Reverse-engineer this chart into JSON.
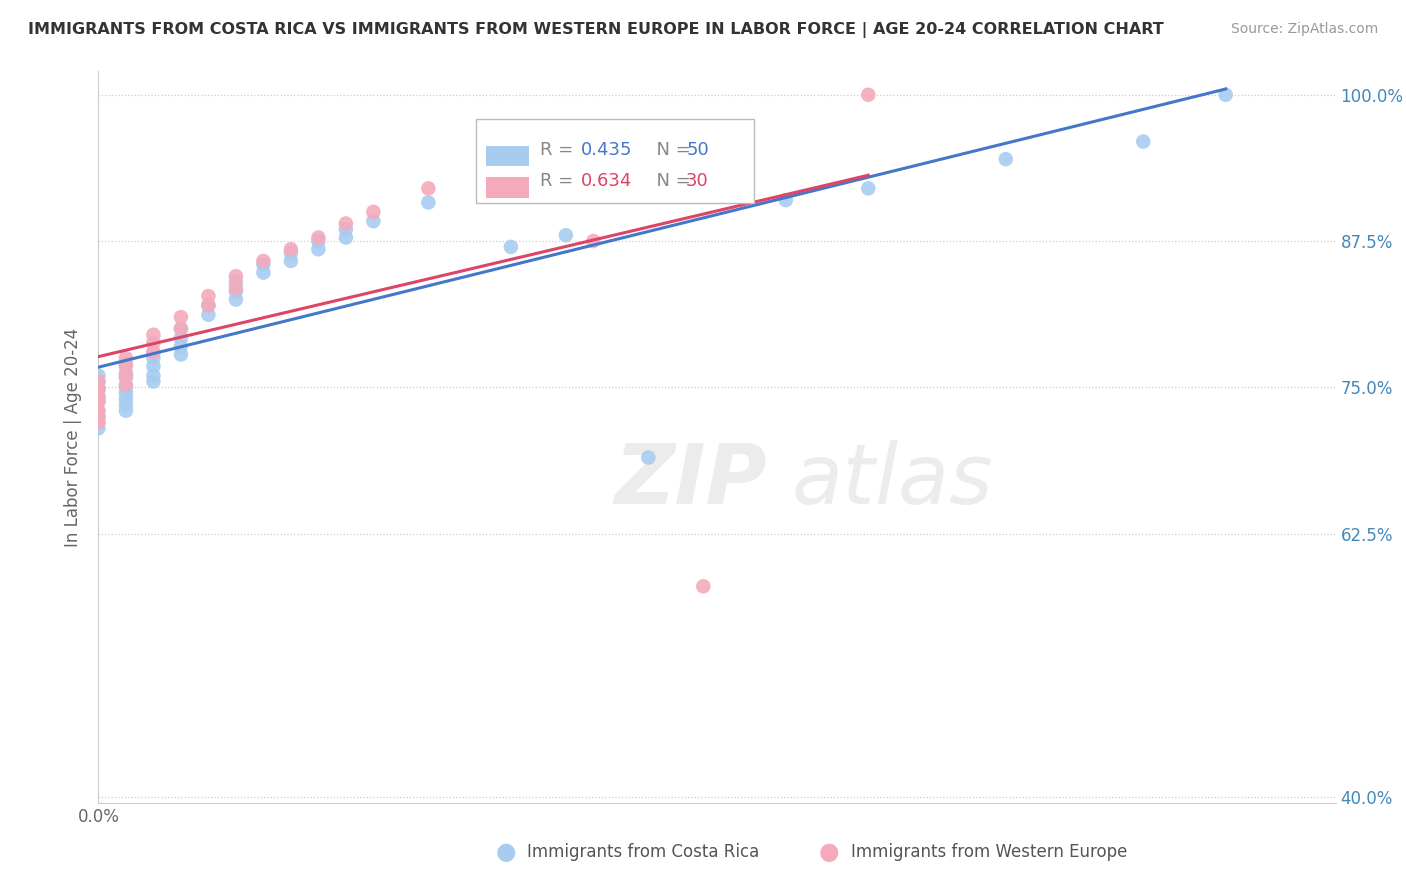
{
  "title": "IMMIGRANTS FROM COSTA RICA VS IMMIGRANTS FROM WESTERN EUROPE IN LABOR FORCE | AGE 20-24 CORRELATION CHART",
  "source": "Source: ZipAtlas.com",
  "ylabel": "In Labor Force | Age 20-24",
  "xlim": [
    0.0,
    0.045
  ],
  "ylim": [
    0.395,
    1.02
  ],
  "y_ticks": [
    0.4,
    0.625,
    0.75,
    0.875,
    1.0
  ],
  "y_tick_labels": [
    "40.0%",
    "62.5%",
    "75.0%",
    "87.5%",
    "100.0%"
  ],
  "x_tick_positions": [
    0.0,
    0.009,
    0.018,
    0.027,
    0.036,
    0.045
  ],
  "blue_color": "#A8CCF0",
  "pink_color": "#F4AABB",
  "blue_line_color": "#4477CC",
  "pink_line_color": "#DD4466",
  "legend_blue_r": "0.435",
  "legend_blue_n": "50",
  "legend_pink_r": "0.634",
  "legend_pink_n": "30",
  "blue_scatter_x": [
    0.0,
    0.0,
    0.0,
    0.0,
    0.0,
    0.0,
    0.0,
    0.0,
    0.0,
    0.0,
    0.001,
    0.001,
    0.001,
    0.001,
    0.001,
    0.001,
    0.001,
    0.001,
    0.002,
    0.002,
    0.002,
    0.002,
    0.002,
    0.003,
    0.003,
    0.003,
    0.003,
    0.004,
    0.004,
    0.005,
    0.005,
    0.005,
    0.006,
    0.006,
    0.007,
    0.007,
    0.008,
    0.008,
    0.009,
    0.009,
    0.01,
    0.012,
    0.015,
    0.017,
    0.02,
    0.025,
    0.028,
    0.033,
    0.038,
    0.041
  ],
  "blue_scatter_y": [
    0.75,
    0.755,
    0.76,
    0.748,
    0.742,
    0.738,
    0.73,
    0.725,
    0.72,
    0.715,
    0.77,
    0.762,
    0.758,
    0.75,
    0.745,
    0.74,
    0.735,
    0.73,
    0.78,
    0.775,
    0.768,
    0.76,
    0.755,
    0.8,
    0.792,
    0.785,
    0.778,
    0.82,
    0.812,
    0.84,
    0.832,
    0.825,
    0.855,
    0.848,
    0.865,
    0.858,
    0.875,
    0.868,
    0.885,
    0.878,
    0.892,
    0.908,
    0.87,
    0.88,
    0.69,
    0.91,
    0.92,
    0.945,
    0.96,
    1.0
  ],
  "pink_scatter_x": [
    0.0,
    0.0,
    0.0,
    0.0,
    0.0,
    0.0,
    0.0,
    0.001,
    0.001,
    0.001,
    0.001,
    0.002,
    0.002,
    0.002,
    0.003,
    0.003,
    0.004,
    0.004,
    0.005,
    0.005,
    0.006,
    0.007,
    0.008,
    0.009,
    0.01,
    0.012,
    0.015,
    0.018,
    0.022,
    0.028
  ],
  "pink_scatter_y": [
    0.755,
    0.748,
    0.742,
    0.738,
    0.73,
    0.725,
    0.72,
    0.775,
    0.768,
    0.76,
    0.752,
    0.795,
    0.788,
    0.78,
    0.81,
    0.8,
    0.828,
    0.82,
    0.845,
    0.835,
    0.858,
    0.868,
    0.878,
    0.89,
    0.9,
    0.92,
    0.94,
    0.875,
    0.58,
    1.0
  ],
  "watermark_zip": "ZIP",
  "watermark_atlas": "atlas"
}
